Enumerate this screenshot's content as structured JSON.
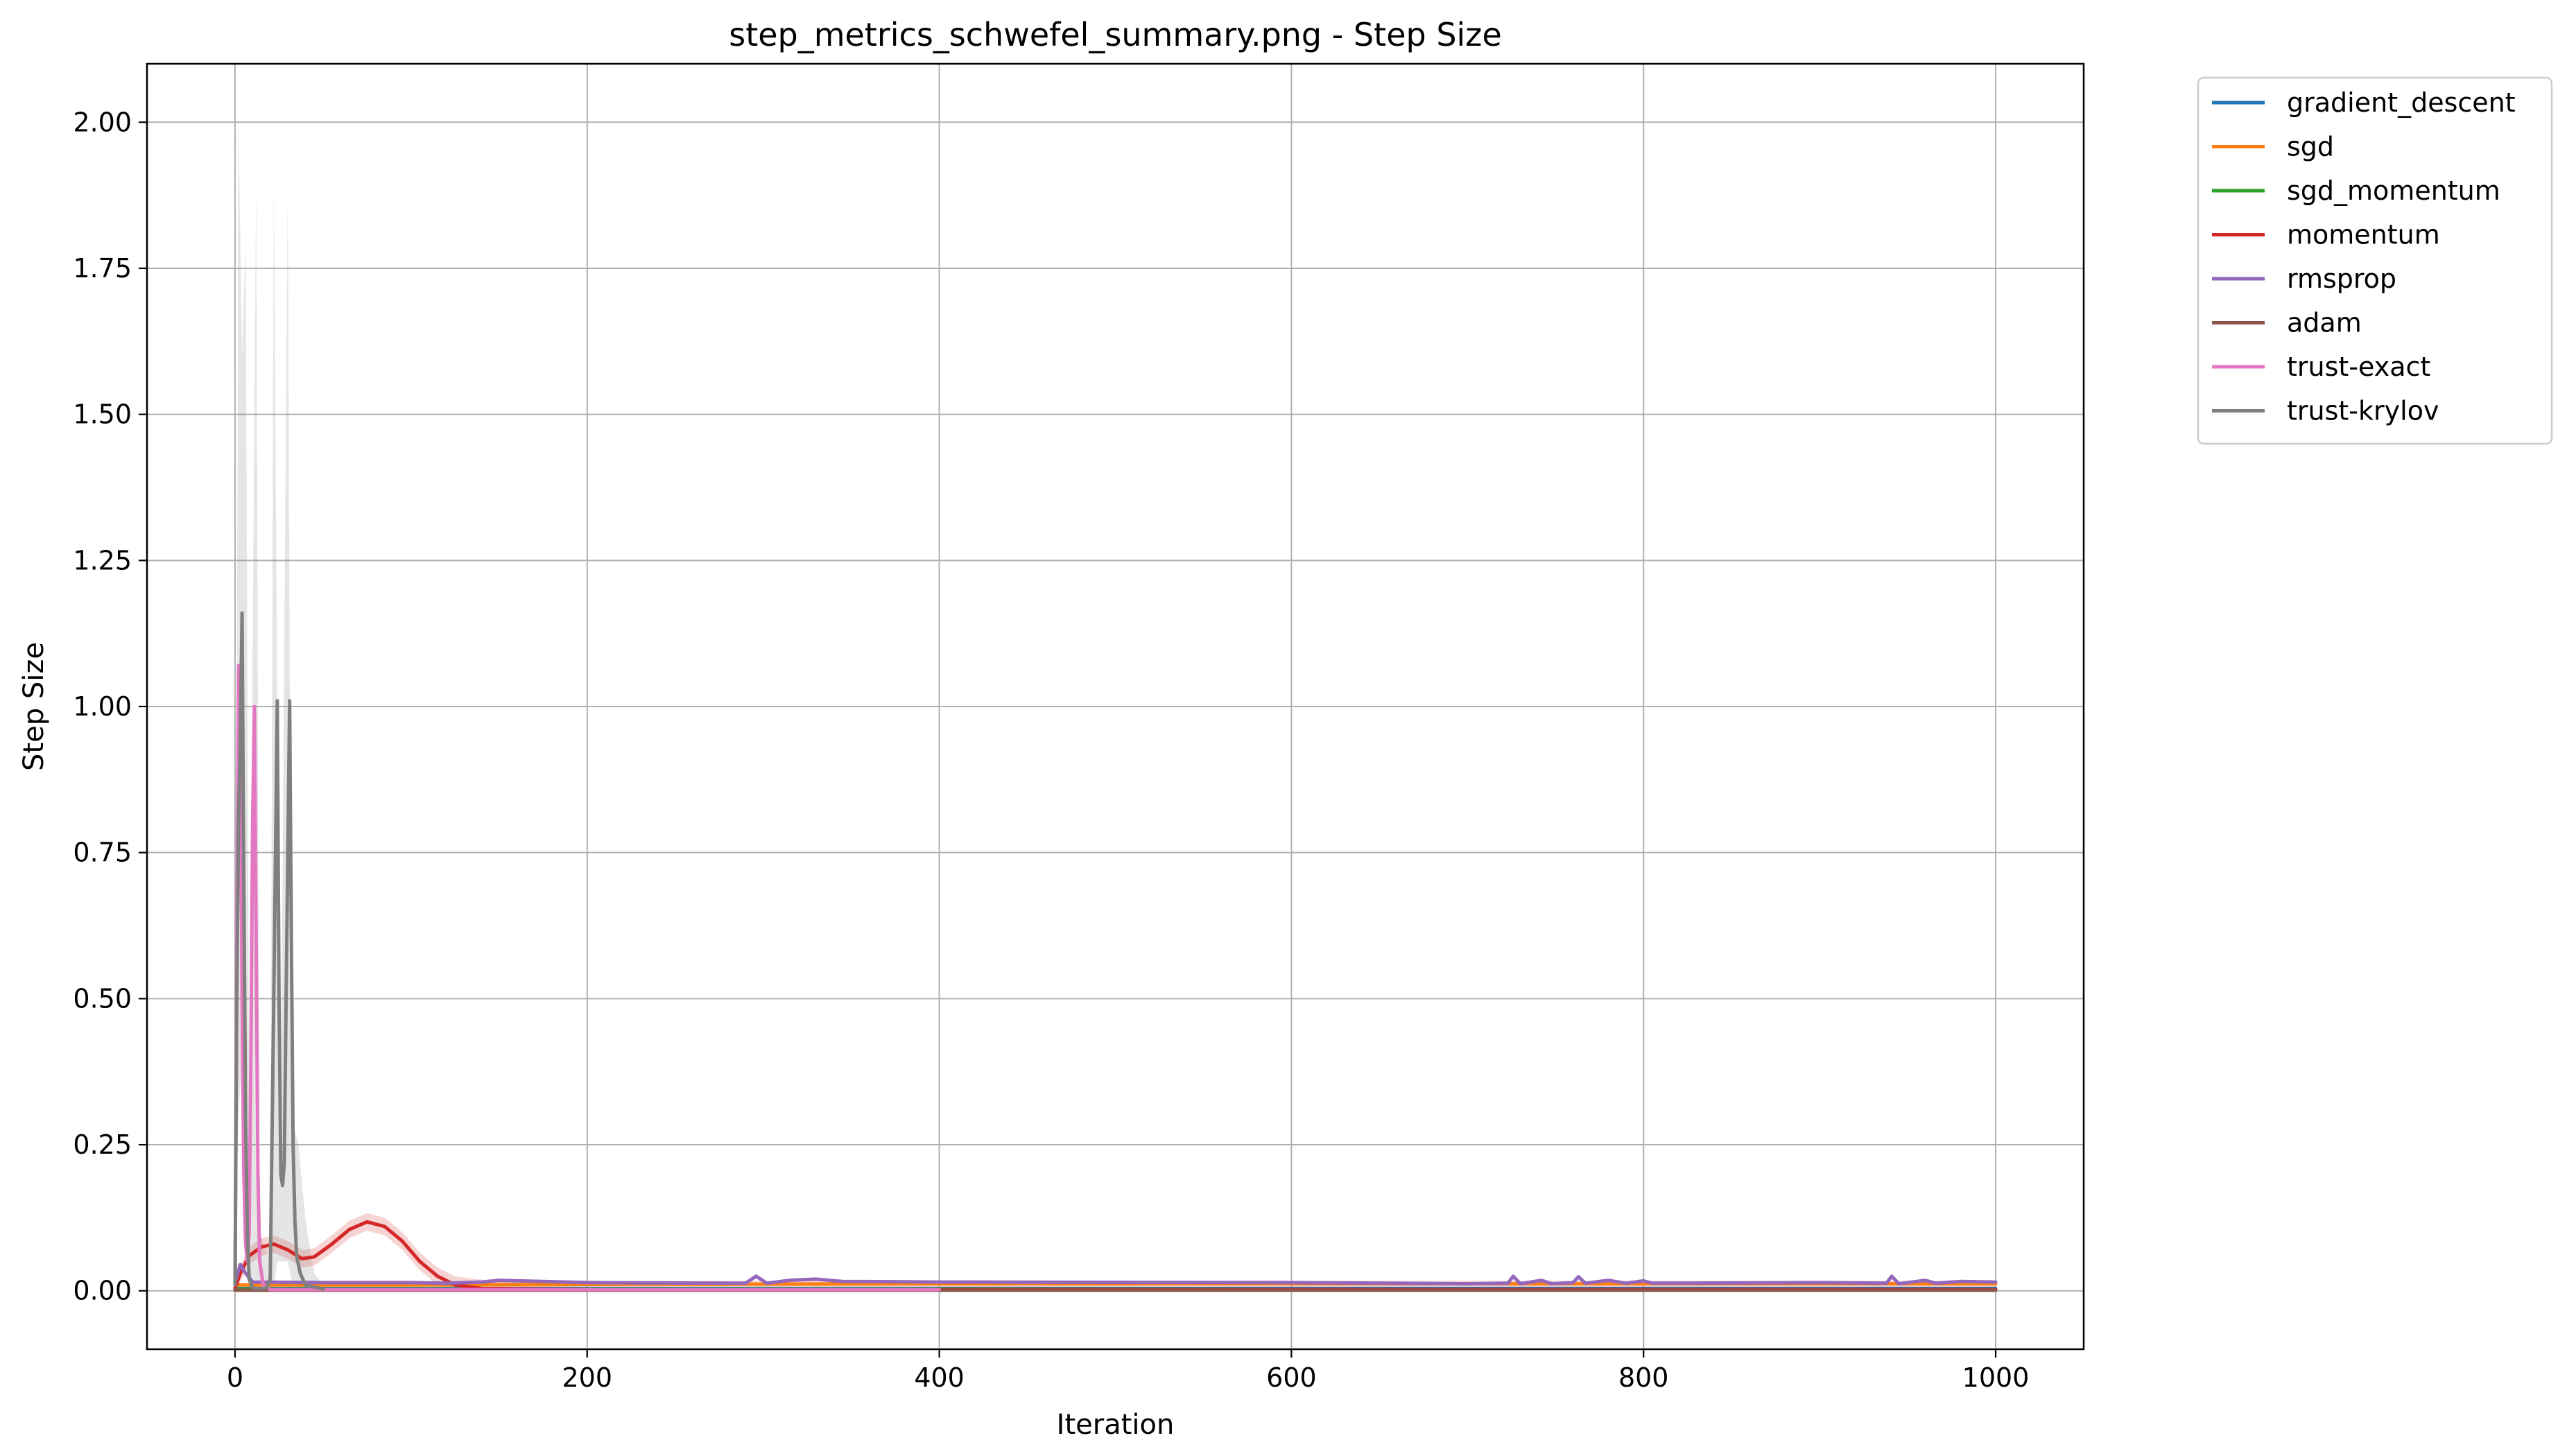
{
  "chart_data": {
    "type": "line",
    "title": "step_metrics_schwefel_summary.png - Step Size",
    "xlabel": "Iteration",
    "ylabel": "Step Size",
    "xlim": [
      -50,
      1050
    ],
    "ylim": [
      -0.1,
      2.1
    ],
    "xticks": [
      0,
      200,
      400,
      600,
      800,
      1000
    ],
    "xtick_labels": [
      "0",
      "200",
      "400",
      "600",
      "800",
      "1000"
    ],
    "yticks": [
      0.0,
      0.25,
      0.5,
      0.75,
      1.0,
      1.25,
      1.5,
      1.75,
      2.0
    ],
    "ytick_labels": [
      "0.00",
      "0.25",
      "0.50",
      "0.75",
      "1.00",
      "1.25",
      "1.50",
      "1.75",
      "2.00"
    ],
    "grid": true,
    "legend_position": "outside-top-right",
    "series": [
      {
        "name": "gradient_descent",
        "color": "#1f77b4",
        "points": [
          [
            0,
            0.004
          ],
          [
            1000,
            0.004
          ]
        ]
      },
      {
        "name": "sgd",
        "color": "#ff7f0e",
        "points": [
          [
            0,
            0.01
          ],
          [
            100,
            0.01
          ],
          [
            200,
            0.011
          ],
          [
            400,
            0.012
          ],
          [
            600,
            0.012
          ],
          [
            800,
            0.012
          ],
          [
            1000,
            0.012
          ]
        ]
      },
      {
        "name": "sgd_momentum",
        "color": "#2ca02c",
        "points": [
          [
            0,
            0.003
          ],
          [
            400,
            0.003
          ],
          [
            600,
            0.002
          ],
          [
            1000,
            0.002
          ]
        ]
      },
      {
        "name": "momentum",
        "color": "#d62728",
        "band": 0.015,
        "points": [
          [
            0,
            0.005
          ],
          [
            3,
            0.03
          ],
          [
            8,
            0.06
          ],
          [
            15,
            0.075
          ],
          [
            22,
            0.08
          ],
          [
            30,
            0.07
          ],
          [
            38,
            0.055
          ],
          [
            45,
            0.058
          ],
          [
            55,
            0.08
          ],
          [
            65,
            0.105
          ],
          [
            75,
            0.118
          ],
          [
            85,
            0.11
          ],
          [
            95,
            0.085
          ],
          [
            105,
            0.05
          ],
          [
            115,
            0.025
          ],
          [
            125,
            0.01
          ],
          [
            140,
            0.004
          ],
          [
            200,
            0.002
          ],
          [
            1000,
            0.002
          ]
        ]
      },
      {
        "name": "rmsprop",
        "color": "#9467bd",
        "points": [
          [
            0,
            0.015
          ],
          [
            3,
            0.045
          ],
          [
            6,
            0.03
          ],
          [
            10,
            0.015
          ],
          [
            50,
            0.014
          ],
          [
            100,
            0.014
          ],
          [
            120,
            0.013
          ],
          [
            140,
            0.015
          ],
          [
            150,
            0.018
          ],
          [
            200,
            0.014
          ],
          [
            290,
            0.013
          ],
          [
            296,
            0.025
          ],
          [
            302,
            0.013
          ],
          [
            315,
            0.018
          ],
          [
            330,
            0.02
          ],
          [
            345,
            0.016
          ],
          [
            400,
            0.015
          ],
          [
            600,
            0.014
          ],
          [
            700,
            0.012
          ],
          [
            723,
            0.013
          ],
          [
            726,
            0.025
          ],
          [
            730,
            0.012
          ],
          [
            742,
            0.018
          ],
          [
            748,
            0.012
          ],
          [
            760,
            0.014
          ],
          [
            763,
            0.024
          ],
          [
            767,
            0.013
          ],
          [
            780,
            0.018
          ],
          [
            790,
            0.013
          ],
          [
            800,
            0.017
          ],
          [
            805,
            0.013
          ],
          [
            900,
            0.014
          ],
          [
            938,
            0.013
          ],
          [
            941,
            0.025
          ],
          [
            945,
            0.012
          ],
          [
            960,
            0.018
          ],
          [
            966,
            0.013
          ],
          [
            980,
            0.016
          ],
          [
            1000,
            0.015
          ]
        ]
      },
      {
        "name": "adam",
        "color": "#8c564b",
        "points": [
          [
            0,
            0.001
          ],
          [
            1000,
            0.001
          ]
        ]
      },
      {
        "name": "trust-exact",
        "color": "#e377c2",
        "points": [
          [
            0,
            0.01
          ],
          [
            1,
            0.6
          ],
          [
            2,
            1.07
          ],
          [
            3,
            0.95
          ],
          [
            4,
            0.5
          ],
          [
            5,
            0.2
          ],
          [
            6,
            0.08
          ],
          [
            7,
            0.05
          ],
          [
            8,
            0.1
          ],
          [
            9,
            0.4
          ],
          [
            10,
            0.8
          ],
          [
            11,
            1.0
          ],
          [
            12,
            0.6
          ],
          [
            13,
            0.2
          ],
          [
            14,
            0.05
          ],
          [
            16,
            0.01
          ],
          [
            20,
            0.002
          ],
          [
            400,
            0.002
          ]
        ]
      },
      {
        "name": "trust-krylov",
        "color": "#7f7f7f",
        "band_points": [
          [
            0,
            0.0,
            0.02
          ],
          [
            2,
            0.3,
            2.0
          ],
          [
            4,
            0.4,
            1.6
          ],
          [
            6,
            0.1,
            1.8
          ],
          [
            8,
            0.0,
            0.3
          ],
          [
            12,
            0.0,
            1.9
          ],
          [
            14,
            0.0,
            0.1
          ],
          [
            20,
            0.0,
            0.05
          ],
          [
            22,
            0.0,
            1.9
          ],
          [
            24,
            0.05,
            1.0
          ],
          [
            26,
            0.05,
            0.35
          ],
          [
            30,
            0.05,
            1.9
          ],
          [
            32,
            0.02,
            0.3
          ],
          [
            36,
            0.0,
            0.25
          ],
          [
            40,
            0.0,
            0.12
          ],
          [
            45,
            0.0,
            0.03
          ],
          [
            50,
            0.0,
            0.01
          ]
        ],
        "points": [
          [
            0,
            0.01
          ],
          [
            1,
            0.5
          ],
          [
            2,
            0.8
          ],
          [
            3,
            0.95
          ],
          [
            4,
            1.16
          ],
          [
            5,
            0.7
          ],
          [
            6,
            0.3
          ],
          [
            7,
            0.1
          ],
          [
            8,
            0.02
          ],
          [
            10,
            0.005
          ],
          [
            14,
            0.003
          ],
          [
            18,
            0.005
          ],
          [
            20,
            0.02
          ],
          [
            22,
            0.5
          ],
          [
            24,
            1.01
          ],
          [
            25,
            0.5
          ],
          [
            26,
            0.2
          ],
          [
            27,
            0.18
          ],
          [
            28,
            0.22
          ],
          [
            29,
            0.5
          ],
          [
            31,
            1.01
          ],
          [
            32,
            0.6
          ],
          [
            33,
            0.25
          ],
          [
            34,
            0.12
          ],
          [
            35,
            0.06
          ],
          [
            37,
            0.03
          ],
          [
            40,
            0.01
          ],
          [
            50,
            0.003
          ]
        ]
      }
    ]
  }
}
